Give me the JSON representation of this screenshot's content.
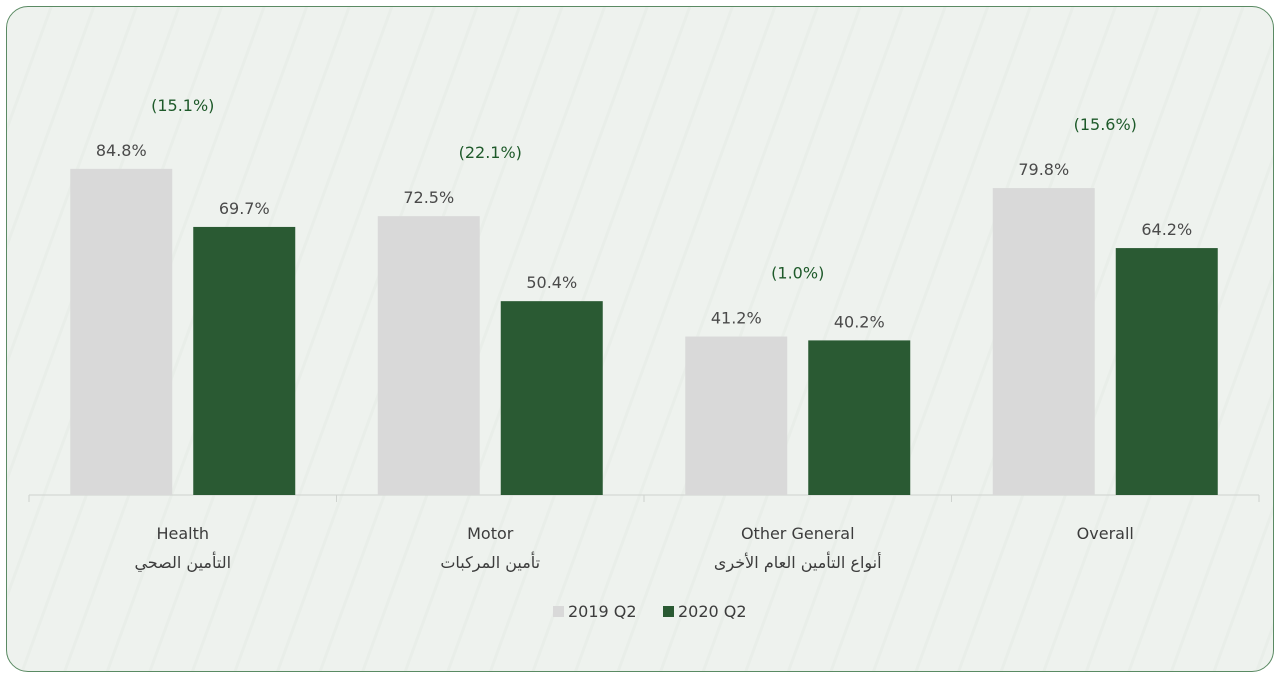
{
  "chart_data": {
    "type": "bar",
    "categories": [
      {
        "en": "Health",
        "ar": "التأمين الصحي"
      },
      {
        "en": "Motor",
        "ar": "تأمين المركبات"
      },
      {
        "en": "Other General",
        "ar": "أنواع التأمين العام الأخرى"
      },
      {
        "en": "Overall",
        "ar": ""
      }
    ],
    "series": [
      {
        "name": "2019 Q2",
        "values": [
          84.8,
          72.5,
          41.2,
          79.8
        ],
        "labels": [
          "84.8%",
          "72.5%",
          "41.2%",
          "79.8%"
        ],
        "color": "#d9d9d9"
      },
      {
        "name": "2020 Q2",
        "values": [
          69.7,
          50.4,
          40.2,
          64.2
        ],
        "labels": [
          "69.7%",
          "50.4%",
          "40.2%",
          "64.2%"
        ],
        "color": "#2a5a33"
      }
    ],
    "changes": [
      "(15.1%)",
      "(22.1%)",
      "(1.0%)",
      "(15.6%)"
    ],
    "change_color": "#1e5a2a",
    "ylim": [
      0,
      100
    ],
    "grid": false,
    "legend_position": "bottom"
  }
}
